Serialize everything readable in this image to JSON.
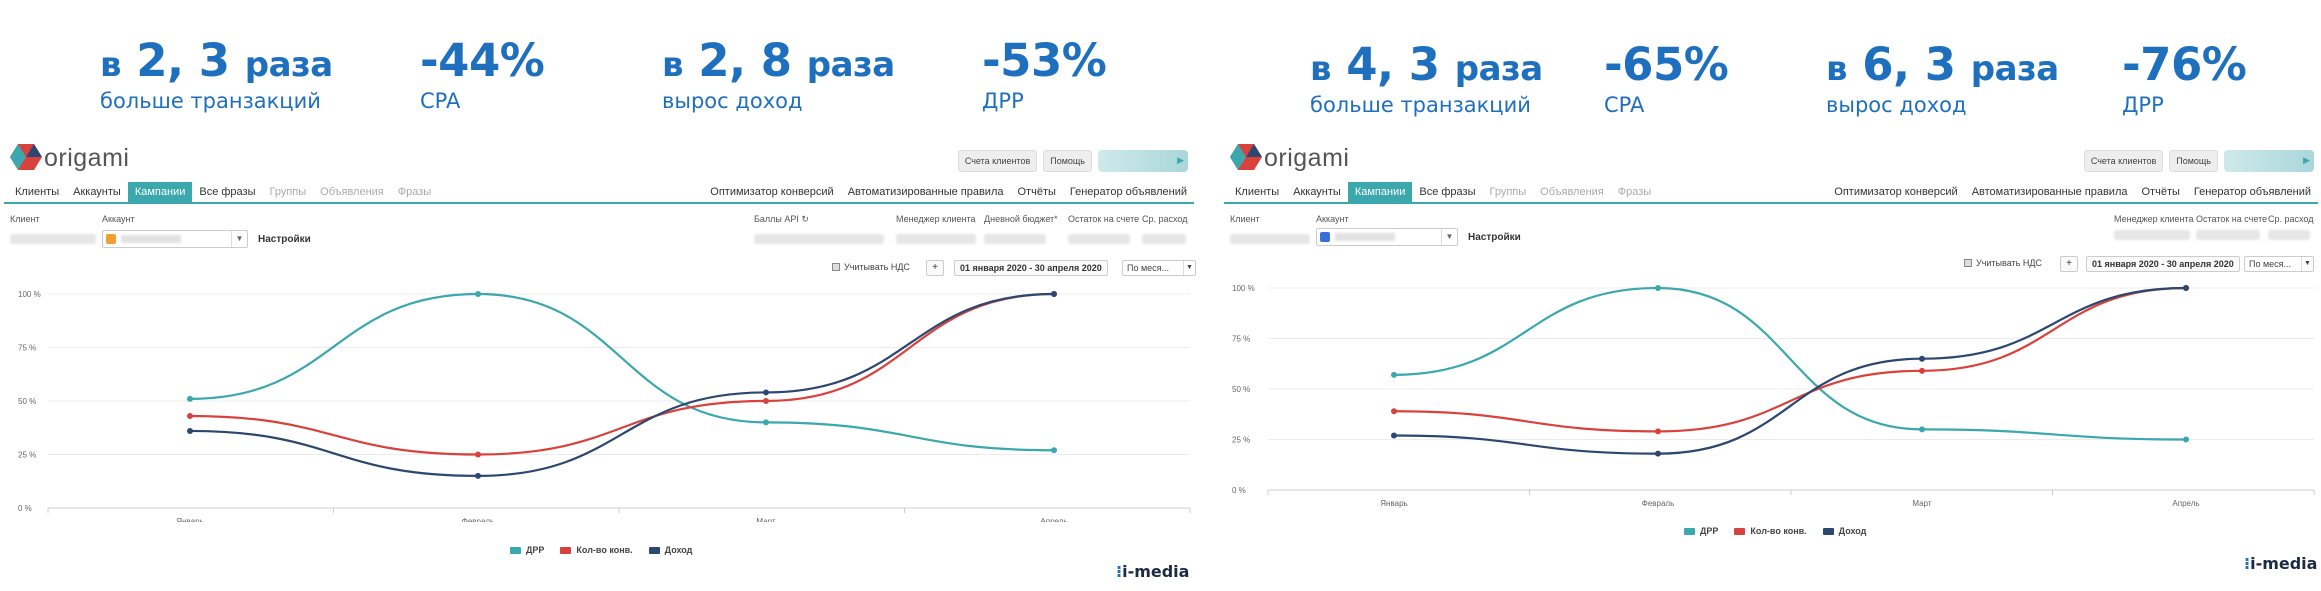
{
  "colors": {
    "accent": "#1f6fbf",
    "teal": "#3aa8ad",
    "red": "#d9423c",
    "navy": "#2c4770"
  },
  "left": {
    "stats": [
      {
        "pre": "в",
        "value": "2, 3",
        "suf": "раза",
        "sub": "больше транзакций"
      },
      {
        "pre": "",
        "value": "-44%",
        "suf": "",
        "sub": "CPA"
      },
      {
        "pre": "в",
        "value": "2, 8",
        "suf": "раза",
        "sub": "вырос доход"
      },
      {
        "pre": "",
        "value": "-53%",
        "suf": "",
        "sub": "ДРР"
      }
    ],
    "app": {
      "logo": "origami",
      "btn_clients_bill": "Счета клиентов",
      "btn_help": "Помощь",
      "nav_left": [
        {
          "label": "Клиенты",
          "state": "normal"
        },
        {
          "label": "Аккаунты",
          "state": "normal"
        },
        {
          "label": "Кампании",
          "state": "active"
        },
        {
          "label": "Все фразы",
          "state": "normal"
        },
        {
          "label": "Группы",
          "state": "dim"
        },
        {
          "label": "Объявления",
          "state": "dim"
        },
        {
          "label": "Фразы",
          "state": "dim"
        }
      ],
      "nav_right": [
        "Оптимизатор конверсий",
        "Автоматизированные правила",
        "Отчёты",
        "Генератор объявлений"
      ],
      "label_client": "Клиент",
      "label_account": "Аккаунт",
      "settings": "Настройки",
      "label_api": "Баллы API",
      "label_manager": "Менеджер клиента",
      "label_budget": "Дневной бюджет*",
      "label_balance": "Остаток на счете",
      "label_avg": "Ср. расход",
      "vat": "Учитывать НДС",
      "plus": "+",
      "date": "01 января 2020 - 30 апреля 2020",
      "granularity": "По меся..."
    },
    "chart_data": {
      "type": "line",
      "categories": [
        "Январь",
        "Февраль",
        "Март",
        "Апрель"
      ],
      "y_ticks": [
        "0 %",
        "25 %",
        "50 %",
        "75 %",
        "100 %"
      ],
      "ylim": [
        0,
        100
      ],
      "legend_placement": "bottom-center",
      "series": [
        {
          "name": "ДРР",
          "color": "#3aa8ad",
          "values": [
            51,
            100,
            40,
            27
          ]
        },
        {
          "name": "Кол-во конв.",
          "color": "#d9423c",
          "values": [
            43,
            25,
            50,
            100
          ]
        },
        {
          "name": "Доход",
          "color": "#2c4770",
          "values": [
            36,
            15,
            54,
            100
          ]
        }
      ]
    },
    "brand": "i-media"
  },
  "right": {
    "stats": [
      {
        "pre": "в",
        "value": "4, 3",
        "suf": "раза",
        "sub": "больше транзакций"
      },
      {
        "pre": "",
        "value": "-65%",
        "suf": "",
        "sub": "CPA"
      },
      {
        "pre": "в",
        "value": "6, 3",
        "suf": "раза",
        "sub": "вырос доход"
      },
      {
        "pre": "",
        "value": "-76%",
        "suf": "",
        "sub": "ДРР"
      }
    ],
    "app": {
      "logo": "origami",
      "btn_clients_bill": "Счета клиентов",
      "btn_help": "Помощь",
      "nav_left": [
        {
          "label": "Клиенты",
          "state": "normal"
        },
        {
          "label": "Аккаунты",
          "state": "normal"
        },
        {
          "label": "Кампании",
          "state": "active"
        },
        {
          "label": "Все фразы",
          "state": "normal"
        },
        {
          "label": "Группы",
          "state": "dim"
        },
        {
          "label": "Объявления",
          "state": "dim"
        },
        {
          "label": "Фразы",
          "state": "dim"
        }
      ],
      "nav_right": [
        "Оптимизатор конверсий",
        "Автоматизированные правила",
        "Отчёты",
        "Генератор объявлений"
      ],
      "label_client": "Клиент",
      "label_account": "Аккаунт",
      "settings": "Настройки",
      "label_manager": "Менеджер клиента",
      "label_balance": "Остаток на счете",
      "label_avg": "Ср. расход",
      "vat": "Учитывать НДС",
      "plus": "+",
      "date": "01 января 2020 - 30 апреля 2020",
      "granularity": "По меся..."
    },
    "chart_data": {
      "type": "line",
      "categories": [
        "Январь",
        "Февраль",
        "Март",
        "Апрель"
      ],
      "y_ticks": [
        "0 %",
        "25 %",
        "50 %",
        "75 %",
        "100 %"
      ],
      "ylim": [
        0,
        100
      ],
      "legend_placement": "bottom-center",
      "series": [
        {
          "name": "ДРР",
          "color": "#3aa8ad",
          "values": [
            57,
            100,
            30,
            25
          ]
        },
        {
          "name": "Кол-во конв.",
          "color": "#d9423c",
          "values": [
            39,
            29,
            59,
            100
          ]
        },
        {
          "name": "Доход",
          "color": "#2c4770",
          "values": [
            27,
            18,
            65,
            100
          ]
        }
      ]
    },
    "brand": "i-media"
  }
}
